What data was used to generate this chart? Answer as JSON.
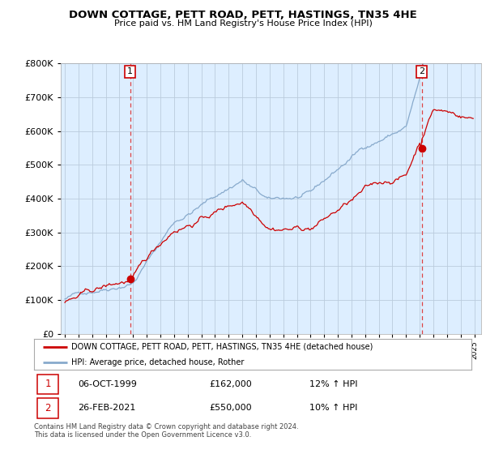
{
  "title": "DOWN COTTAGE, PETT ROAD, PETT, HASTINGS, TN35 4HE",
  "subtitle": "Price paid vs. HM Land Registry's House Price Index (HPI)",
  "legend_property": "DOWN COTTAGE, PETT ROAD, PETT, HASTINGS, TN35 4HE (detached house)",
  "legend_hpi": "HPI: Average price, detached house, Rother",
  "annotation1_label": "1",
  "annotation1_date": "06-OCT-1999",
  "annotation1_price": "£162,000",
  "annotation1_hpi": "12% ↑ HPI",
  "annotation2_label": "2",
  "annotation2_date": "26-FEB-2021",
  "annotation2_price": "£550,000",
  "annotation2_hpi": "10% ↑ HPI",
  "footer": "Contains HM Land Registry data © Crown copyright and database right 2024.\nThis data is licensed under the Open Government Licence v3.0.",
  "property_color": "#cc0000",
  "hpi_color": "#88aacc",
  "vline_color": "#dd4444",
  "point1_x": 1999.78,
  "point1_y": 162000,
  "point2_x": 2021.15,
  "point2_y": 550000,
  "ylim": [
    0,
    800000
  ],
  "xlim": [
    1994.7,
    2025.5
  ],
  "plot_bg_color": "#ddeeff",
  "background_color": "#ffffff",
  "grid_color": "#bbccdd"
}
